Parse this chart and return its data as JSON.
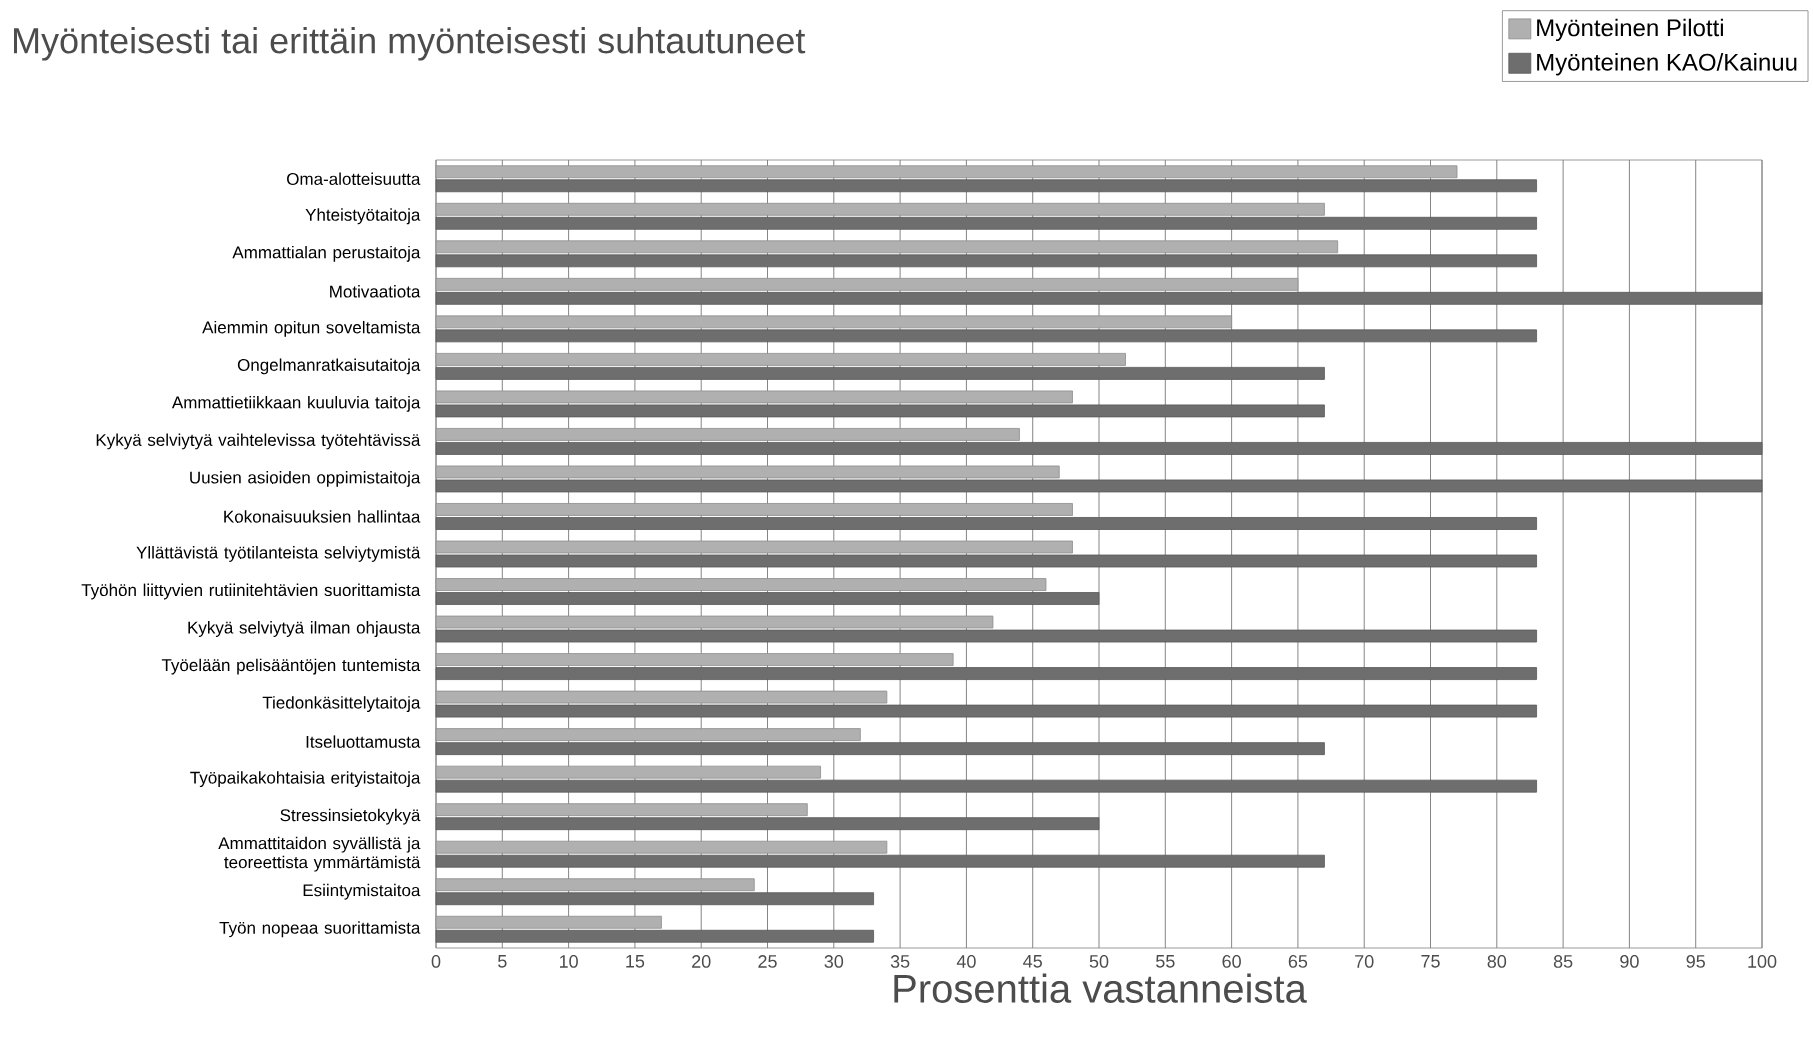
{
  "chart_data": {
    "type": "bar",
    "orientation": "horizontal",
    "title": "Myönteisesti tai erittäin myönteisesti suhtautuneet",
    "xlabel": "Prosenttia vastanneista",
    "categories": [
      "Oma-alotteisuutta",
      "Yhteistyötaitoja",
      "Ammattialan perustaitoja",
      "Motivaatiota",
      "Aiemmin opitun soveltamista",
      "Ongelmanratkaisutaitoja",
      "Ammattietiikkaan kuuluvia taitoja",
      "Kykyä selviytyä vaihtelevissa työtehtävissä",
      "Uusien asioiden oppimistaitoja",
      "Kokonaisuuksien hallintaa",
      "Yllättävistä työtilanteista selviytymistä",
      "Työhön liittyvien rutiinitehtävien suorittamista",
      "Kykyä selviytyä ilman ohjausta",
      "Työelään pelisääntöjen tuntemista",
      "Tiedonkäsittelytaitoja",
      "Itseluottamusta",
      "Työpaikakohtaisia erityistaitoja",
      "Stressinsietokykyä",
      "Ammattitaidon syvällistä ja teoreettista ymmärtämistä",
      "Esiintymistaitoa",
      "Työn nopeaa suorittamista"
    ],
    "series": [
      {
        "name": "Myönteinen Pilotti",
        "color": "#b0b0b0",
        "values": [
          77,
          67,
          68,
          65,
          60,
          52,
          48,
          44,
          47,
          48,
          48,
          46,
          42,
          39,
          34,
          32,
          29,
          28,
          34,
          24,
          17
        ]
      },
      {
        "name": "Myönteinen KAO/Kainuu",
        "color": "#6e6e6e",
        "values": [
          83,
          83,
          83,
          100,
          83,
          67,
          67,
          100,
          100,
          83,
          83,
          50,
          83,
          83,
          83,
          67,
          83,
          50,
          67,
          33,
          33
        ]
      }
    ],
    "xlim": [
      0,
      100
    ],
    "xticks": [
      0,
      5,
      10,
      15,
      20,
      25,
      30,
      35,
      40,
      45,
      50,
      55,
      60,
      65,
      70,
      75,
      80,
      85,
      90,
      95,
      100
    ],
    "grid": "x",
    "legend": "top right"
  }
}
